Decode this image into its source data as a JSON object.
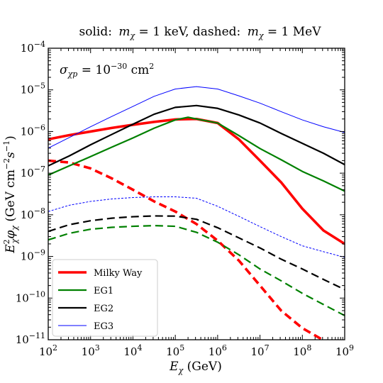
{
  "chart_data": {
    "type": "line",
    "title": "solid: m_χ = 1 keV, dashed: m_χ = 1 MeV",
    "title_parts": {
      "solid_word": "solid:",
      "solid_symbol": "m",
      "solid_sub": "χ",
      "solid_value": " = 1 keV, ",
      "dashed_word": "dashed:",
      "dashed_symbol": "m",
      "dashed_sub": "χ",
      "dashed_value": " = 1 MeV"
    },
    "annotation": {
      "symbol": "σ",
      "sub": "χp",
      "eq": " = 10",
      "exp": "−30",
      "unit": " cm",
      "unit_exp": "2"
    },
    "xlabel": {
      "symbol": "E",
      "sub": "χ",
      "rest": " (GeV)"
    },
    "ylabel": {
      "symbol": "E",
      "sup": "2",
      "sub": "χ",
      "phi": "φ",
      "phi_sub": "χ",
      "paren": " (GeV cm",
      "exp1": "−2",
      "s": "s",
      "exp2": "−1",
      "close": ")"
    },
    "x_scale": "log",
    "y_scale": "log",
    "xlim": [
      100,
      1000000000
    ],
    "ylim": [
      1e-11,
      0.0001
    ],
    "x_ticks": [
      {
        "base": "10",
        "exp": "2"
      },
      {
        "base": "10",
        "exp": "3"
      },
      {
        "base": "10",
        "exp": "4"
      },
      {
        "base": "10",
        "exp": "5"
      },
      {
        "base": "10",
        "exp": "6"
      },
      {
        "base": "10",
        "exp": "7"
      },
      {
        "base": "10",
        "exp": "8"
      },
      {
        "base": "10",
        "exp": "9"
      }
    ],
    "y_ticks": [
      {
        "base": "10",
        "exp": "−11"
      },
      {
        "base": "10",
        "exp": "−10"
      },
      {
        "base": "10",
        "exp": "−9"
      },
      {
        "base": "10",
        "exp": "−8"
      },
      {
        "base": "10",
        "exp": "−7"
      },
      {
        "base": "10",
        "exp": "−6"
      },
      {
        "base": "10",
        "exp": "−5"
      },
      {
        "base": "10",
        "exp": "−4"
      }
    ],
    "legend_position": "lower-left",
    "series": [
      {
        "name": "Milky Way",
        "color": "#ff0000",
        "style": "solid",
        "width": "thick",
        "x": [
          100,
          316,
          1000,
          3162,
          10000,
          31623,
          100000,
          316228,
          1000000,
          3162278,
          10000000,
          31622777,
          100000000,
          316227766,
          1000000000
        ],
        "y": [
          6.5e-07,
          8.2e-07,
          1e-06,
          1.22e-06,
          1.45e-06,
          1.7e-06,
          1.95e-06,
          2e-06,
          1.6e-06,
          6.5e-07,
          2e-07,
          6e-08,
          1.4e-08,
          4.2e-09,
          2e-09
        ]
      },
      {
        "name": "Milky Way",
        "color": "#ff0000",
        "style": "dashed",
        "width": "thick",
        "x": [
          100,
          316,
          1000,
          3162,
          10000,
          31623,
          100000,
          316228,
          1000000,
          3162278,
          10000000,
          31622777,
          100000000,
          300000000
        ],
        "y": [
          2e-07,
          1.8e-07,
          1.3e-07,
          7.5e-08,
          4e-08,
          2.1e-08,
          1.2e-08,
          6e-09,
          2.4e-09,
          8e-10,
          2e-10,
          5e-11,
          1.9e-11,
          1e-11
        ]
      },
      {
        "name": "EG1",
        "color": "#008000",
        "style": "solid",
        "width": "medium",
        "x": [
          100,
          316,
          1000,
          3162,
          10000,
          31623,
          100000,
          200000,
          316228,
          1000000,
          3162278,
          10000000,
          31622777,
          100000000,
          316227766,
          1000000000
        ],
        "y": [
          9e-08,
          1.5e-07,
          2.5e-07,
          4.2e-07,
          7e-07,
          1.2e-06,
          1.9e-06,
          2.2e-06,
          2e-06,
          1.6e-06,
          8e-07,
          3.9e-07,
          2.1e-07,
          1.1e-07,
          6.5e-08,
          3.7e-08
        ]
      },
      {
        "name": "EG1",
        "color": "#008000",
        "style": "dashed",
        "width": "medium",
        "x": [
          100,
          316,
          1000,
          3162,
          10000,
          31623,
          100000,
          316228,
          1000000,
          3162278,
          10000000,
          31622777,
          100000000,
          316227766,
          1000000000
        ],
        "y": [
          2.5e-09,
          3.6e-09,
          4.5e-09,
          5e-09,
          5.3e-09,
          5.5e-09,
          5.3e-09,
          3.8e-09,
          2.2e-09,
          1.1e-09,
          5e-10,
          2.6e-10,
          1.3e-10,
          7e-11,
          3.8e-11
        ]
      },
      {
        "name": "EG2",
        "color": "#000000",
        "style": "solid",
        "width": "medium",
        "x": [
          100,
          316,
          1000,
          3162,
          10000,
          31623,
          100000,
          316228,
          1000000,
          3162278,
          10000000,
          31622777,
          100000000,
          316227766,
          1000000000
        ],
        "y": [
          1.5e-07,
          2.6e-07,
          4.8e-07,
          8.5e-07,
          1.5e-06,
          2.6e-06,
          3.8e-06,
          4.2e-06,
          3.6e-06,
          2.5e-06,
          1.6e-06,
          9e-07,
          5.2e-07,
          3e-07,
          1.6e-07
        ]
      },
      {
        "name": "EG2",
        "color": "#000000",
        "style": "dashed",
        "width": "medium",
        "x": [
          100,
          316,
          1000,
          3162,
          10000,
          31623,
          100000,
          316228,
          1000000,
          3162278,
          10000000,
          31622777,
          100000000,
          316227766,
          1000000000
        ],
        "y": [
          4e-09,
          5.8e-09,
          7.2e-09,
          8.3e-09,
          9e-09,
          9.4e-09,
          9.3e-09,
          7.8e-09,
          4.9e-09,
          2.8e-09,
          1.6e-09,
          8.6e-10,
          5e-10,
          2.8e-10,
          1.6e-10
        ]
      },
      {
        "name": "EG3",
        "color": "#0000ff",
        "style": "solid",
        "width": "thin",
        "x": [
          100,
          316,
          1000,
          3162,
          10000,
          31623,
          100000,
          316228,
          1000000,
          3162278,
          10000000,
          31622777,
          100000000,
          316227766,
          1000000000
        ],
        "y": [
          4e-07,
          7.2e-07,
          1.3e-06,
          2.3e-06,
          4e-06,
          7e-06,
          1.05e-05,
          1.2e-05,
          1.05e-05,
          7.2e-06,
          4.8e-06,
          3e-06,
          1.9e-06,
          1.3e-06,
          9.5e-07
        ]
      },
      {
        "name": "EG3",
        "color": "#0000ff",
        "style": "dotted",
        "width": "thin",
        "x": [
          100,
          316,
          1000,
          3162,
          10000,
          31623,
          100000,
          316228,
          1000000,
          3162278,
          10000000,
          31622777,
          100000000,
          316227766,
          1000000000
        ],
        "y": [
          1.2e-08,
          1.7e-08,
          2.1e-08,
          2.4e-08,
          2.6e-08,
          2.7e-08,
          2.7e-08,
          2.5e-08,
          1.6e-08,
          9.2e-09,
          5.2e-09,
          3e-09,
          1.8e-09,
          1.3e-09,
          9.5e-10
        ]
      }
    ],
    "legend": [
      {
        "label": "Milky Way",
        "color": "#ff0000",
        "style": "solid",
        "width": "thick"
      },
      {
        "label": "EG1",
        "color": "#008000",
        "style": "solid",
        "width": "medium"
      },
      {
        "label": "EG2",
        "color": "#000000",
        "style": "solid",
        "width": "medium"
      },
      {
        "label": "EG3",
        "color": "#0000ff",
        "style": "solid",
        "width": "thin"
      }
    ]
  }
}
